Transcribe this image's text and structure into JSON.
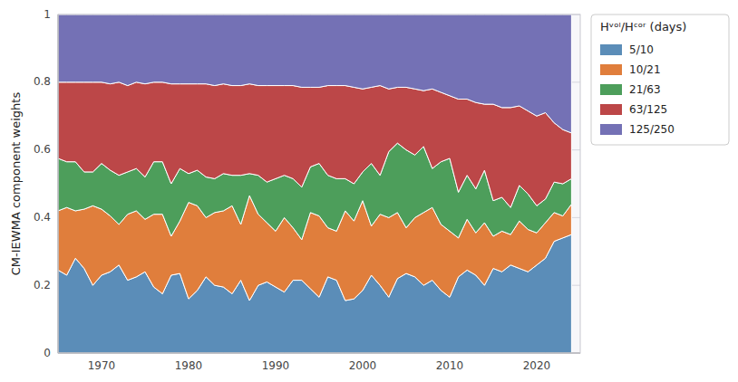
{
  "chart_data": {
    "type": "area",
    "stacked": true,
    "ylabel": "CM-IEWMA component weights",
    "legend_title": "Hᵛᵒˡ/Hᶜᵒʳ (days)",
    "legend": "right",
    "grid": true,
    "xlim": [
      1965,
      2025
    ],
    "xticks": [
      1970,
      1980,
      1990,
      2000,
      2010,
      2020
    ],
    "ylim": [
      0,
      1
    ],
    "yticks": [
      0,
      0.2,
      0.4,
      0.6,
      0.8,
      1
    ],
    "x": [
      1965,
      1966,
      1967,
      1968,
      1969,
      1970,
      1971,
      1972,
      1973,
      1974,
      1975,
      1976,
      1977,
      1978,
      1979,
      1980,
      1981,
      1982,
      1983,
      1984,
      1985,
      1986,
      1987,
      1988,
      1989,
      1990,
      1991,
      1992,
      1993,
      1994,
      1995,
      1996,
      1997,
      1998,
      1999,
      2000,
      2001,
      2002,
      2003,
      2004,
      2005,
      2006,
      2007,
      2008,
      2009,
      2010,
      2011,
      2012,
      2013,
      2014,
      2015,
      2016,
      2017,
      2018,
      2019,
      2020,
      2021,
      2022,
      2023,
      2024
    ],
    "series": [
      {
        "name": "5/10",
        "color": "#5b8db8",
        "values": [
          0.245,
          0.23,
          0.28,
          0.25,
          0.2,
          0.23,
          0.24,
          0.26,
          0.215,
          0.225,
          0.24,
          0.195,
          0.175,
          0.23,
          0.235,
          0.16,
          0.185,
          0.225,
          0.2,
          0.195,
          0.175,
          0.215,
          0.155,
          0.2,
          0.21,
          0.195,
          0.18,
          0.215,
          0.215,
          0.19,
          0.165,
          0.225,
          0.215,
          0.155,
          0.16,
          0.185,
          0.23,
          0.2,
          0.165,
          0.22,
          0.235,
          0.225,
          0.2,
          0.215,
          0.185,
          0.165,
          0.225,
          0.245,
          0.23,
          0.2,
          0.25,
          0.24,
          0.26,
          0.25,
          0.24,
          0.26,
          0.28,
          0.33,
          0.34,
          0.35
        ]
      },
      {
        "name": "10/21",
        "color": "#e07e3c",
        "values": [
          0.175,
          0.2,
          0.14,
          0.175,
          0.235,
          0.195,
          0.165,
          0.12,
          0.195,
          0.195,
          0.155,
          0.215,
          0.235,
          0.115,
          0.155,
          0.285,
          0.25,
          0.175,
          0.215,
          0.225,
          0.26,
          0.165,
          0.31,
          0.21,
          0.175,
          0.165,
          0.22,
          0.155,
          0.12,
          0.225,
          0.24,
          0.145,
          0.145,
          0.265,
          0.23,
          0.265,
          0.145,
          0.21,
          0.235,
          0.195,
          0.135,
          0.175,
          0.215,
          0.215,
          0.195,
          0.195,
          0.115,
          0.15,
          0.125,
          0.185,
          0.095,
          0.12,
          0.09,
          0.14,
          0.125,
          0.095,
          0.105,
          0.085,
          0.065,
          0.09
        ]
      },
      {
        "name": "21/63",
        "color": "#4d9e5b",
        "values": [
          0.155,
          0.135,
          0.145,
          0.11,
          0.1,
          0.135,
          0.135,
          0.145,
          0.125,
          0.125,
          0.125,
          0.155,
          0.155,
          0.155,
          0.155,
          0.085,
          0.105,
          0.12,
          0.1,
          0.11,
          0.09,
          0.145,
          0.065,
          0.115,
          0.12,
          0.155,
          0.125,
          0.145,
          0.155,
          0.135,
          0.155,
          0.155,
          0.155,
          0.095,
          0.11,
          0.085,
          0.185,
          0.115,
          0.195,
          0.205,
          0.23,
          0.185,
          0.195,
          0.115,
          0.185,
          0.215,
          0.135,
          0.13,
          0.13,
          0.155,
          0.105,
          0.1,
          0.08,
          0.105,
          0.105,
          0.08,
          0.07,
          0.09,
          0.095,
          0.075
        ]
      },
      {
        "name": "63/125",
        "color": "#bc4748",
        "values": [
          0.225,
          0.235,
          0.235,
          0.265,
          0.265,
          0.24,
          0.255,
          0.275,
          0.255,
          0.255,
          0.275,
          0.235,
          0.235,
          0.295,
          0.25,
          0.265,
          0.255,
          0.275,
          0.275,
          0.265,
          0.265,
          0.265,
          0.265,
          0.265,
          0.285,
          0.275,
          0.265,
          0.275,
          0.295,
          0.235,
          0.225,
          0.265,
          0.275,
          0.275,
          0.285,
          0.245,
          0.225,
          0.265,
          0.185,
          0.165,
          0.185,
          0.195,
          0.165,
          0.235,
          0.205,
          0.185,
          0.275,
          0.225,
          0.255,
          0.195,
          0.285,
          0.265,
          0.295,
          0.235,
          0.245,
          0.265,
          0.255,
          0.175,
          0.16,
          0.135
        ]
      },
      {
        "name": "125/250",
        "color": "#7471b5",
        "values": [
          0.2,
          0.2,
          0.2,
          0.2,
          0.2,
          0.2,
          0.205,
          0.2,
          0.21,
          0.2,
          0.205,
          0.2,
          0.2,
          0.205,
          0.205,
          0.205,
          0.205,
          0.205,
          0.21,
          0.205,
          0.21,
          0.21,
          0.205,
          0.21,
          0.21,
          0.21,
          0.21,
          0.21,
          0.215,
          0.215,
          0.215,
          0.21,
          0.21,
          0.21,
          0.215,
          0.22,
          0.215,
          0.21,
          0.22,
          0.215,
          0.215,
          0.22,
          0.225,
          0.22,
          0.23,
          0.24,
          0.25,
          0.25,
          0.26,
          0.265,
          0.265,
          0.275,
          0.275,
          0.27,
          0.285,
          0.3,
          0.29,
          0.32,
          0.34,
          0.35
        ]
      }
    ]
  }
}
